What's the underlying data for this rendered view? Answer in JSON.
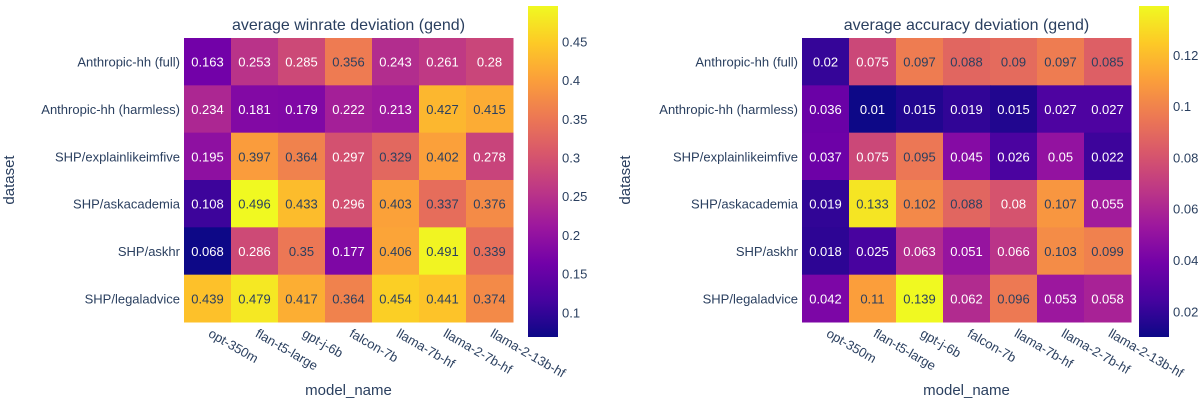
{
  "charts": [
    {
      "chart_data": {
        "type": "heatmap",
        "title": "average winrate deviation (gend)",
        "xlabel": "model_name",
        "ylabel": "dataset",
        "x": [
          "opt-350m",
          "flan-t5-large",
          "gpt-j-6b",
          "falcon-7b",
          "llama-7b-hf",
          "llama-2-7b-hf",
          "llama-2-13b-hf"
        ],
        "y": [
          "Anthropic-hh (full)",
          "Anthropic-hh (harmless)",
          "SHP/explainlikeimfive",
          "SHP/askacademia",
          "SHP/askhr",
          "SHP/legaladvice"
        ],
        "z": [
          [
            0.163,
            0.253,
            0.285,
            0.356,
            0.243,
            0.261,
            0.28
          ],
          [
            0.234,
            0.181,
            0.179,
            0.222,
            0.213,
            0.427,
            0.415
          ],
          [
            0.195,
            0.397,
            0.364,
            0.297,
            0.329,
            0.402,
            0.278
          ],
          [
            0.108,
            0.496,
            0.433,
            0.296,
            0.403,
            0.337,
            0.376
          ],
          [
            0.068,
            0.286,
            0.35,
            0.177,
            0.406,
            0.491,
            0.339
          ],
          [
            0.439,
            0.479,
            0.417,
            0.364,
            0.454,
            0.441,
            0.374
          ]
        ],
        "zmin": 0.068,
        "zmax": 0.496,
        "colorscale": "plasma",
        "colorbar_ticks": [
          "0.1",
          "0.15",
          "0.2",
          "0.25",
          "0.3",
          "0.35",
          "0.4",
          "0.45"
        ]
      }
    },
    {
      "chart_data": {
        "type": "heatmap",
        "title": "average accuracy deviation (gend)",
        "xlabel": "model_name",
        "ylabel": "dataset",
        "x": [
          "opt-350m",
          "flan-t5-large",
          "gpt-j-6b",
          "falcon-7b",
          "llama-7b-hf",
          "llama-2-7b-hf",
          "llama-2-13b-hf"
        ],
        "y": [
          "Anthropic-hh (full)",
          "Anthropic-hh (harmless)",
          "SHP/explainlikeimfive",
          "SHP/askacademia",
          "SHP/askhr",
          "SHP/legaladvice"
        ],
        "z": [
          [
            0.02,
            0.075,
            0.097,
            0.088,
            0.09,
            0.097,
            0.085
          ],
          [
            0.036,
            0.01,
            0.015,
            0.019,
            0.015,
            0.027,
            0.027
          ],
          [
            0.037,
            0.075,
            0.095,
            0.045,
            0.026,
            0.05,
            0.022
          ],
          [
            0.019,
            0.133,
            0.102,
            0.088,
            0.08,
            0.107,
            0.055
          ],
          [
            0.018,
            0.025,
            0.063,
            0.051,
            0.066,
            0.103,
            0.099
          ],
          [
            0.042,
            0.11,
            0.139,
            0.062,
            0.096,
            0.053,
            0.058
          ]
        ],
        "zmin": 0.01,
        "zmax": 0.139,
        "colorscale": "plasma",
        "colorbar_ticks": [
          "0.02",
          "0.04",
          "0.06",
          "0.08",
          "0.1",
          "0.12"
        ]
      }
    }
  ]
}
